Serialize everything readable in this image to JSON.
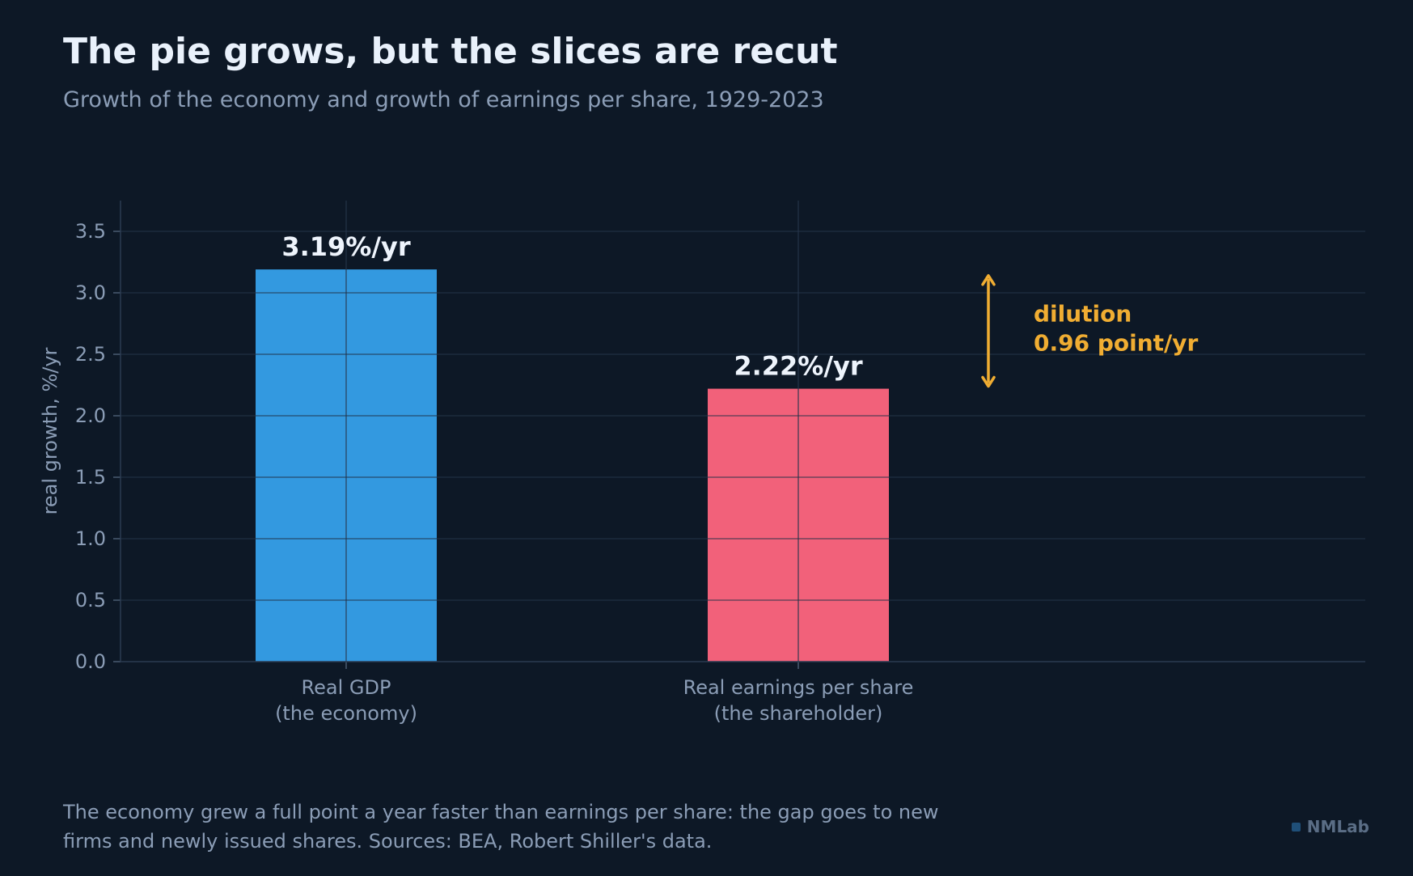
{
  "header": {
    "title": "The pie grows, but the slices are recut",
    "subtitle": "Growth of the economy and growth of earnings per share, 1929-2023"
  },
  "chart_data": {
    "type": "bar",
    "categories": [
      [
        "Real GDP",
        "(the economy)"
      ],
      [
        "Real earnings per share",
        "(the shareholder)"
      ]
    ],
    "values": [
      3.19,
      2.22
    ],
    "value_labels": [
      "3.19%/yr",
      "2.22%/yr"
    ],
    "colors": [
      "#3399e0",
      "#f2617a"
    ],
    "ylabel": "real growth, %/yr",
    "ylim": [
      0,
      3.75
    ],
    "yticks": [
      "0.0",
      "0.5",
      "1.0",
      "1.5",
      "2.0",
      "2.5",
      "3.0",
      "3.5"
    ],
    "grid": true,
    "annotation": {
      "lines": [
        "dilution",
        "0.96 point/yr"
      ],
      "from": 3.14,
      "to": 2.24,
      "color": "#f0ad32"
    }
  },
  "footer": {
    "note": "The economy grew a full point a year faster than earnings per share: the gap goes to new firms and newly issued shares. Sources: BEA, Robert Shiller's data.",
    "brand": "NMLab"
  }
}
